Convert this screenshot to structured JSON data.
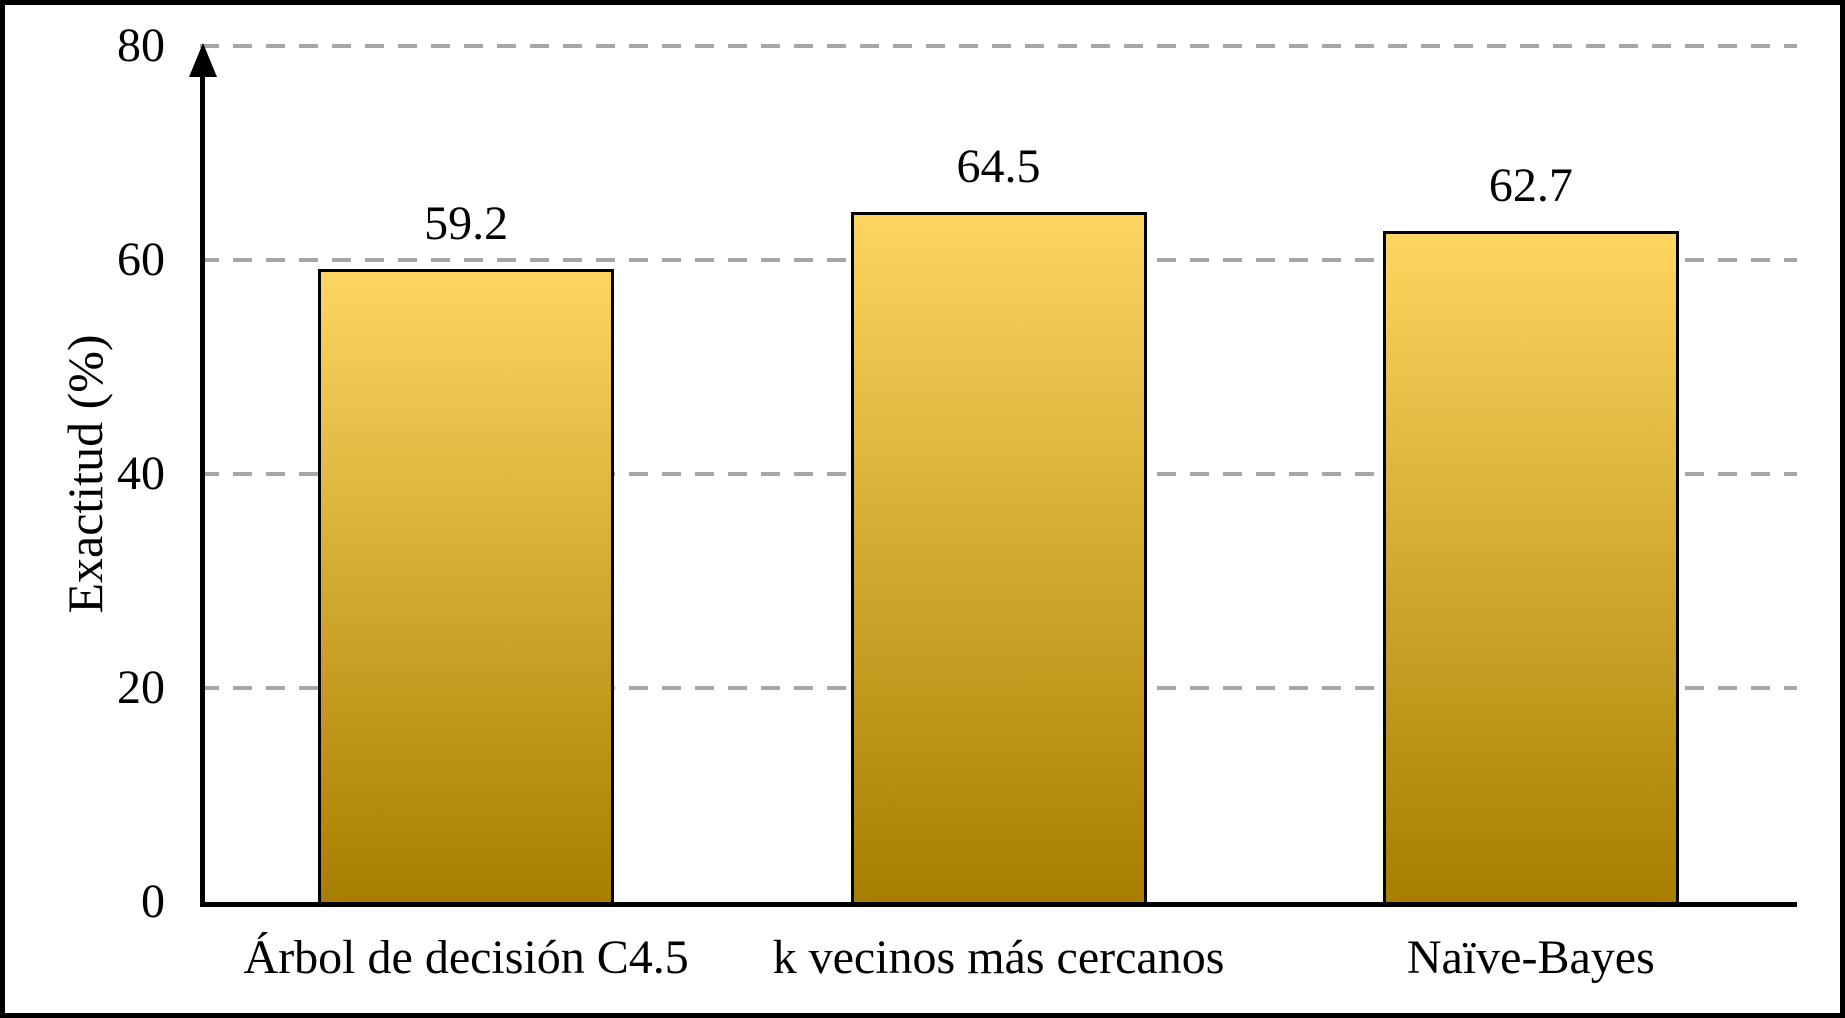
{
  "chart_data": {
    "type": "bar",
    "title": "",
    "categories": [
      "Árbol de decisión C4.5",
      "k vecinos más cercanos",
      "Naïve-Bayes"
    ],
    "values": [
      59.2,
      64.5,
      62.7
    ],
    "value_labels": [
      "59.2",
      "64.5",
      "62.7"
    ],
    "xlabel": "",
    "ylabel": "Exactitud (%)",
    "ylim": [
      0,
      80
    ],
    "yticks": [
      0,
      20,
      40,
      60,
      80
    ],
    "ytick_labels": [
      "0",
      "20",
      "40",
      "60",
      "80"
    ],
    "grid": "horizontal-dashed",
    "legend": "none",
    "colors": {
      "bar_gradient_top": "#FDD560",
      "bar_gradient_bottom": "#A87E00",
      "bar_border": "#000000",
      "gridline": "#A6A6A6",
      "axis": "#000000",
      "text": "#000000",
      "background": "#FFFFFF"
    }
  }
}
